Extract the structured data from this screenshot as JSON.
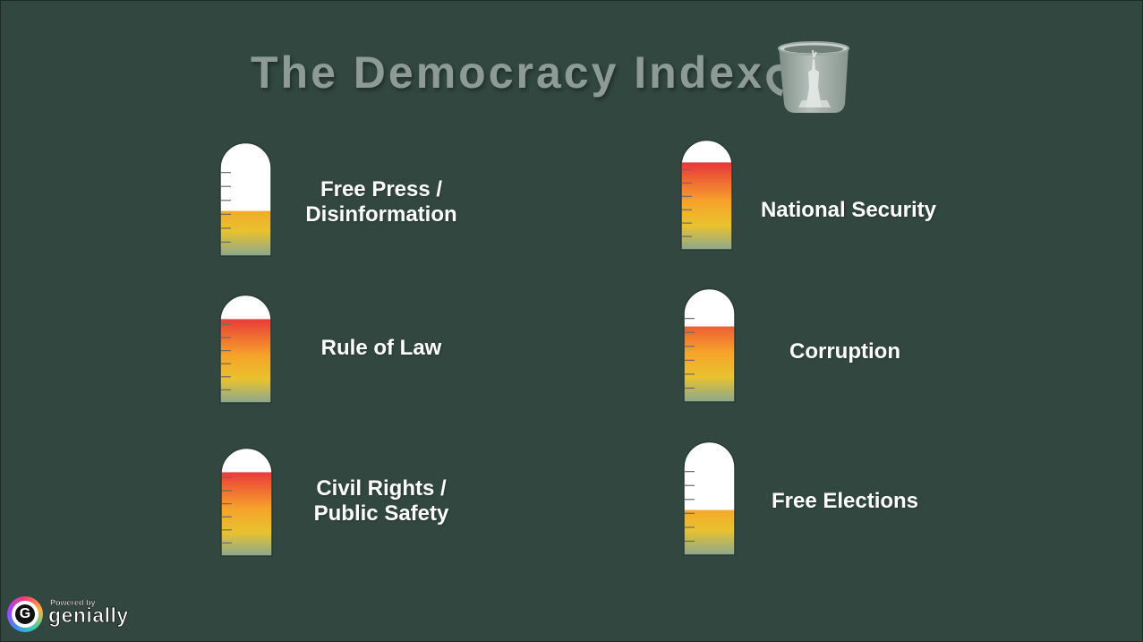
{
  "page": {
    "title": "The Democracy Index",
    "background": "#324740"
  },
  "colors": {
    "liquid_top": "#e8363a",
    "liquid_mid": "#f6a32a",
    "liquid_low": "#e9c22e",
    "liquid_bottom": "#8aa890",
    "glass": "#ffffff",
    "tick": "#6a6a6a"
  },
  "icons": {
    "mug": "mug-with-statue-of-liberty-icon",
    "brand": "genially-logo-icon"
  },
  "gauges": [
    {
      "label": "Free Press / Disinformation",
      "level": 0.4
    },
    {
      "label": "National Security",
      "level": 0.8
    },
    {
      "label": "Rule of Law",
      "level": 0.78
    },
    {
      "label": "Corruption",
      "level": 0.67
    },
    {
      "label": "Civil Rights / Public Safety",
      "level": 0.78
    },
    {
      "label": "Free Elections",
      "level": 0.4
    }
  ],
  "branding": {
    "powered_by": "Powered by",
    "name": "genially"
  }
}
